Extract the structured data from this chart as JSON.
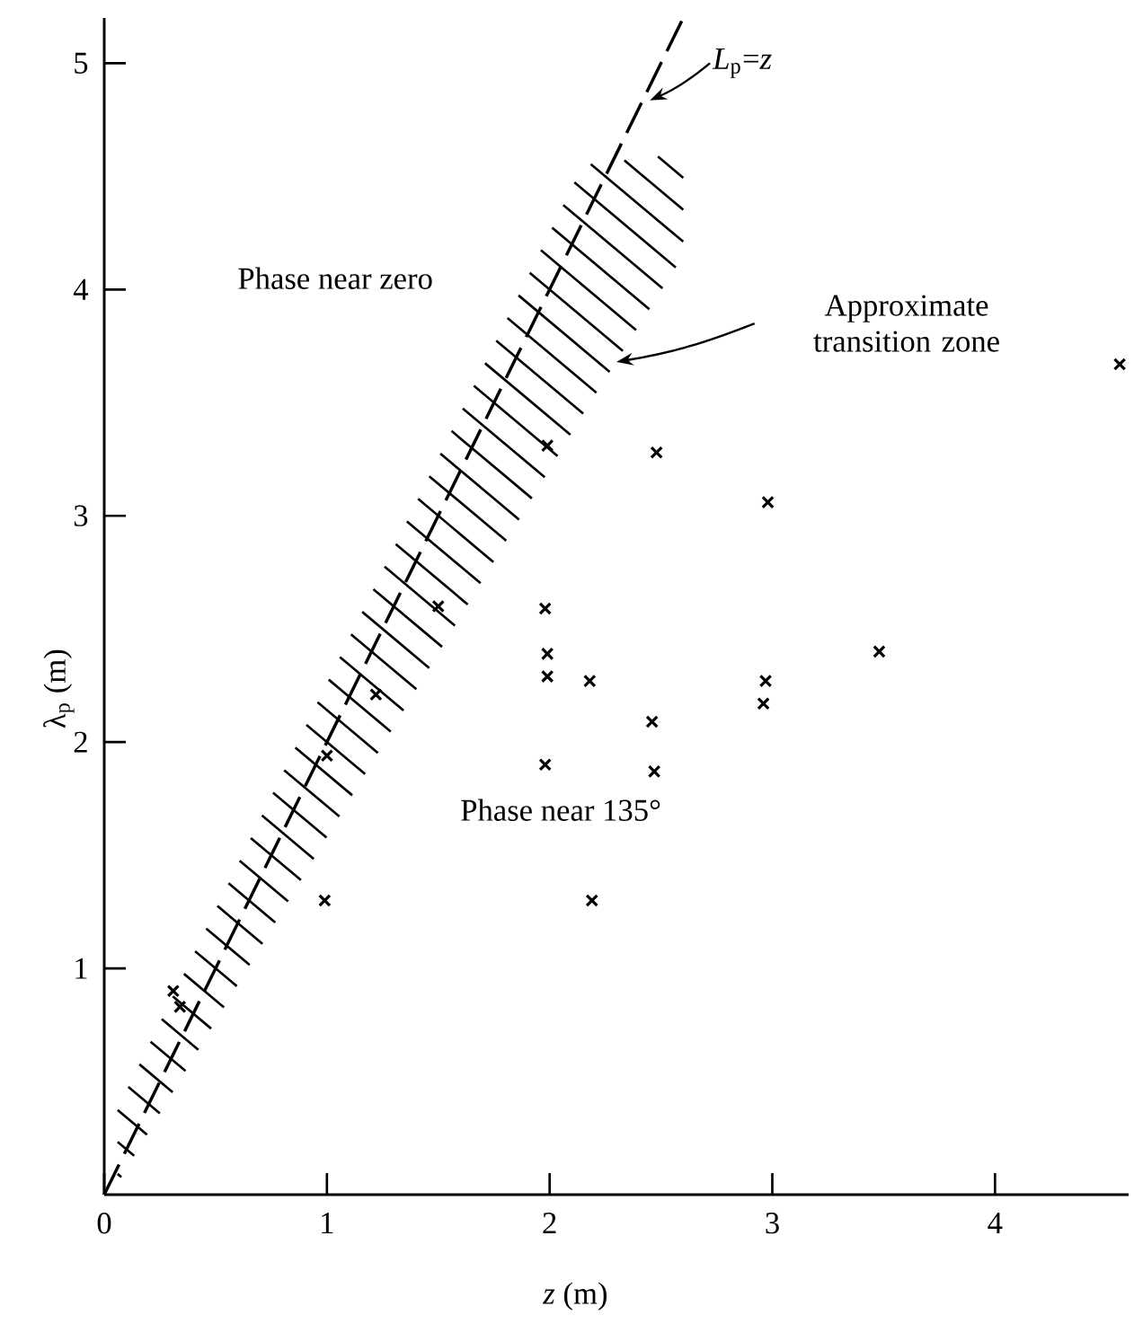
{
  "chart_data": {
    "type": "scatter",
    "xlabel": "*z* (m)",
    "ylabel": "λ$_{p}$ (m)",
    "xlim": [
      0,
      4.6
    ],
    "ylim": [
      0,
      5.2
    ],
    "xticks": [
      0,
      1,
      2,
      3,
      4
    ],
    "yticks": [
      1,
      2,
      3,
      4,
      5
    ],
    "grid": false,
    "marker": "cross",
    "annotations": [
      "Phase near zero",
      "Phase near 135°",
      "Approximate transition zone"
    ],
    "series": [
      {
        "type": "scatter",
        "color": "#000000",
        "x": [
          0.31,
          0.34,
          0.99,
          1.0,
          1.22,
          1.5,
          1.99,
          1.98,
          1.99,
          1.99,
          1.98,
          2.18,
          2.19,
          2.46,
          2.47,
          2.48,
          2.98,
          2.97,
          2.96,
          3.48,
          4.56
        ],
        "values": [
          0.9,
          0.83,
          1.3,
          1.94,
          2.21,
          2.6,
          3.31,
          2.59,
          2.39,
          2.29,
          1.9,
          2.27,
          1.3,
          2.09,
          1.87,
          3.28,
          3.06,
          2.27,
          2.17,
          2.4,
          3.67
        ]
      },
      {
        "type": "line",
        "name": "*L*$_{p}$=*z*",
        "color": "#000000",
        "line_style": "dashed",
        "marker": "none",
        "x": [
          0,
          2.6
        ],
        "values": [
          0,
          5.2
        ]
      }
    ]
  }
}
